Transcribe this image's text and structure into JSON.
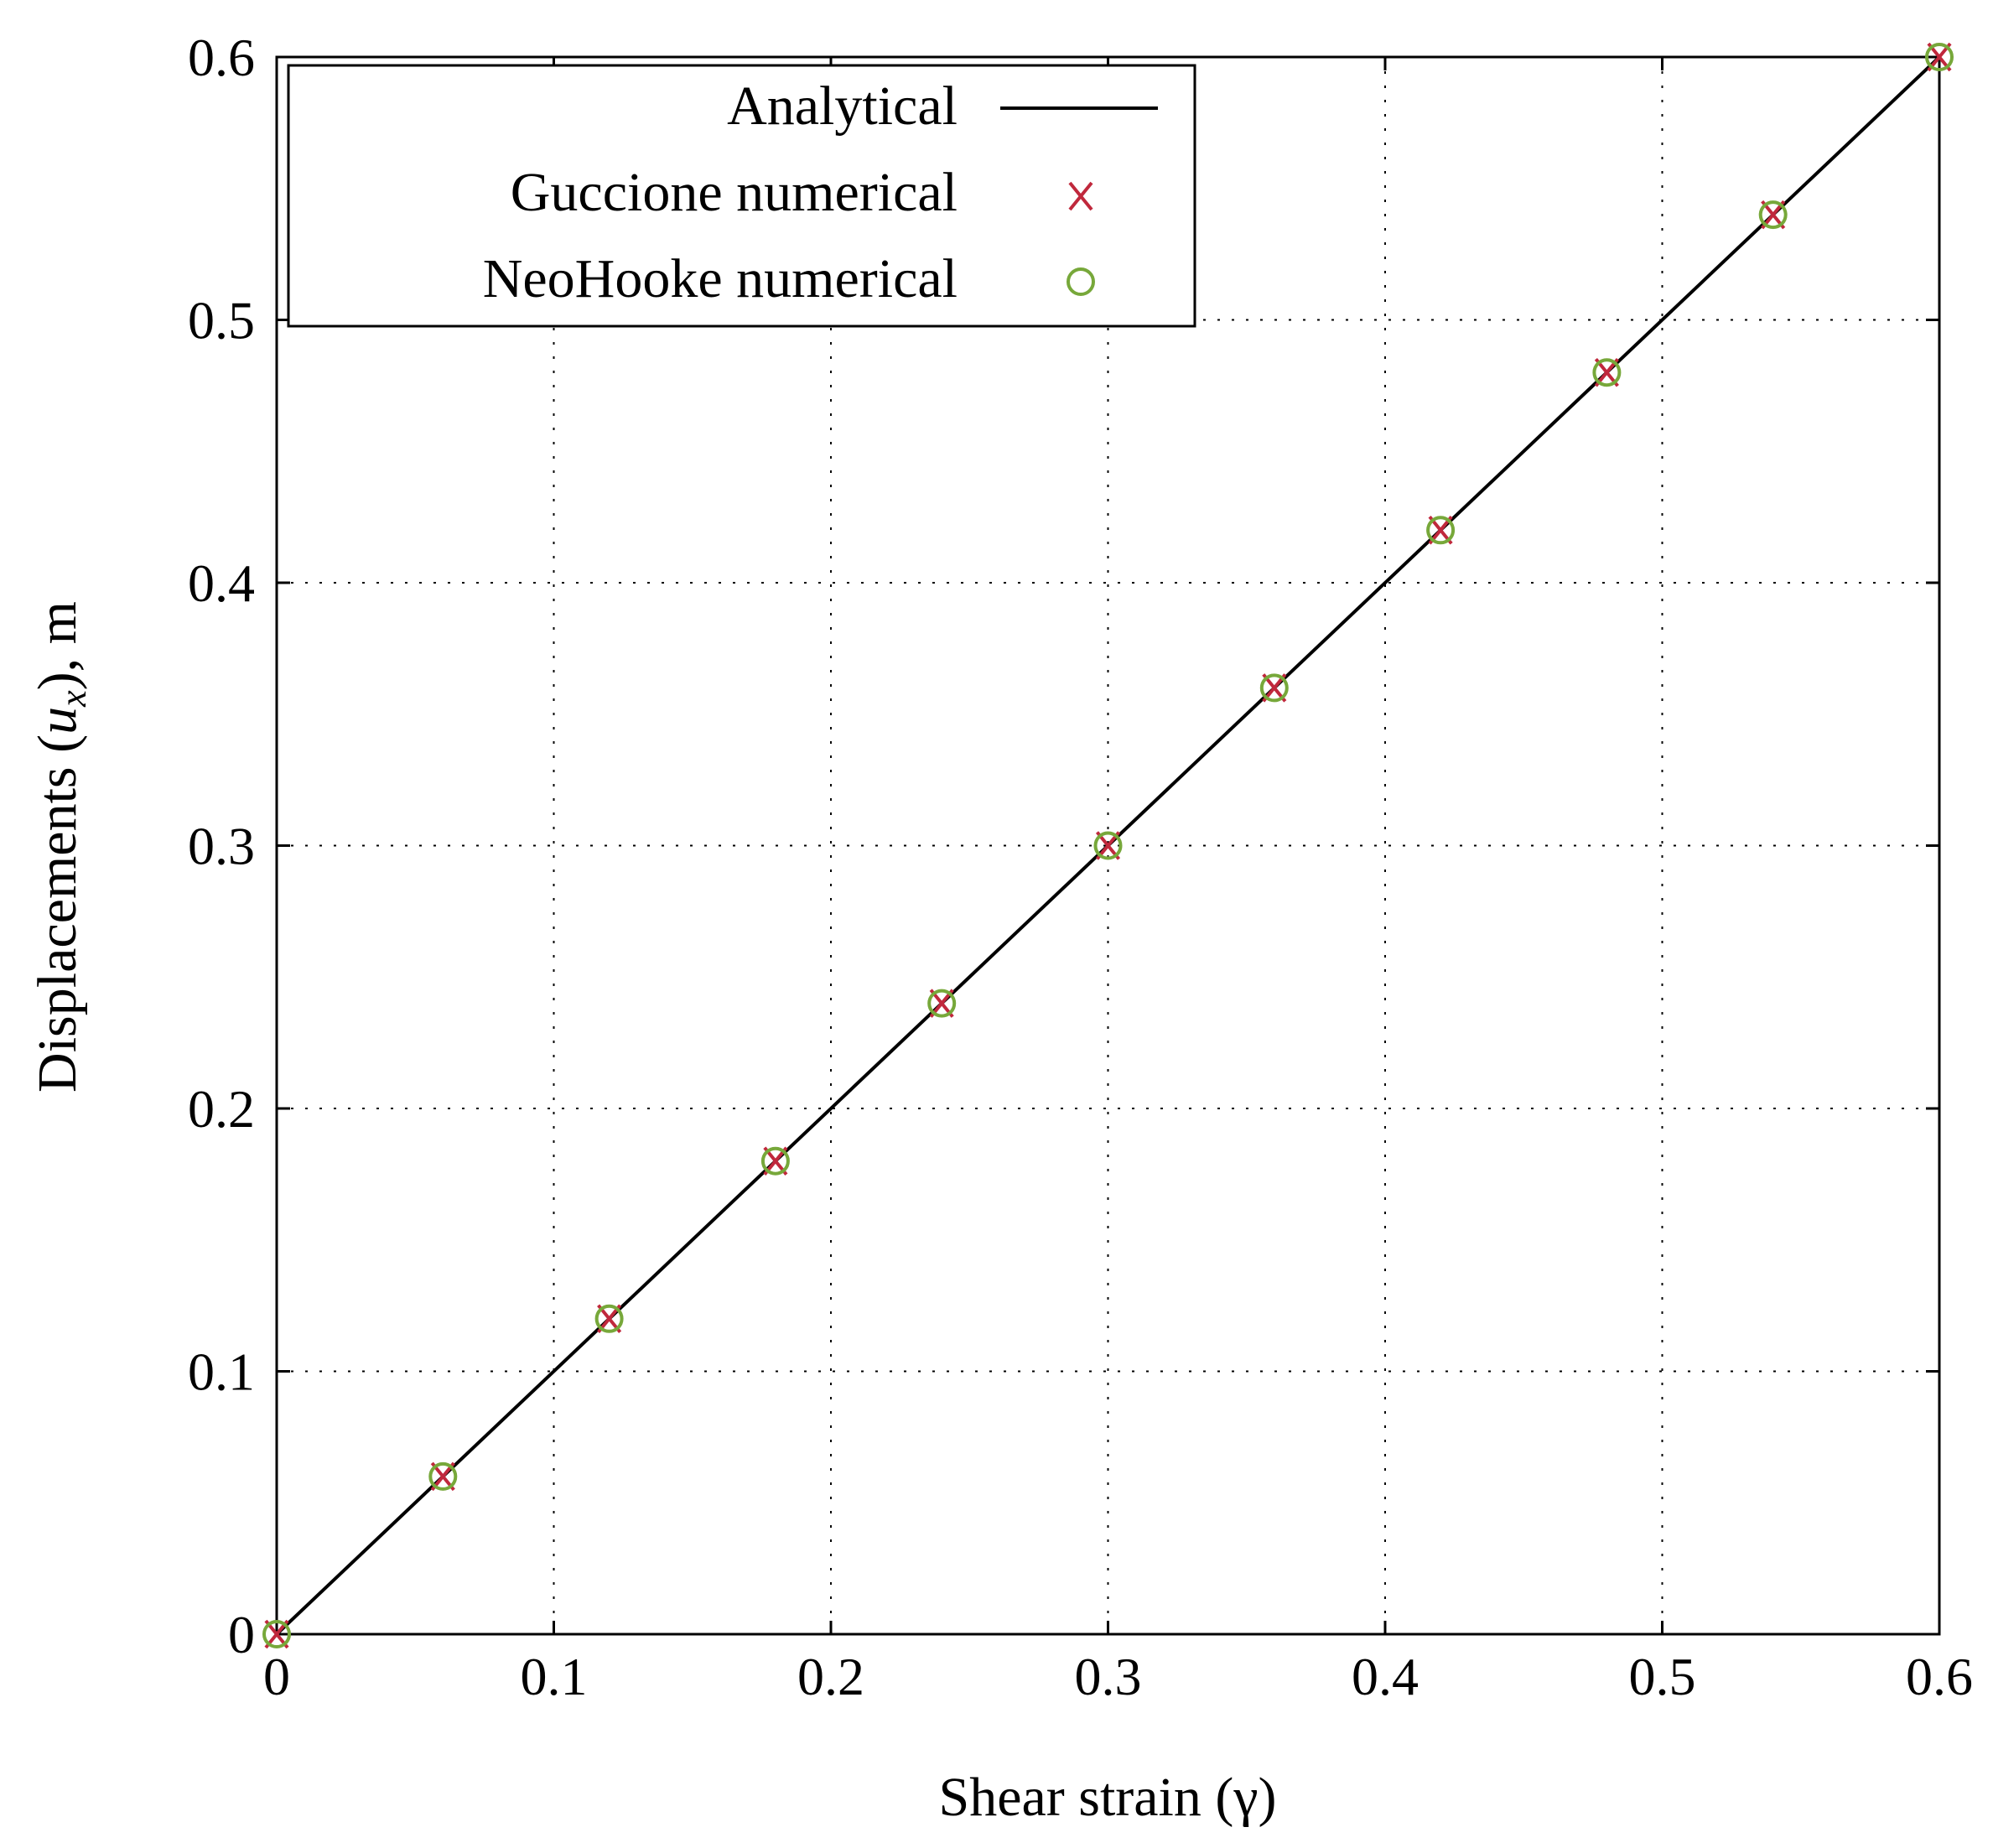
{
  "chart_data": {
    "type": "line",
    "title": "",
    "xlabel": "Shear strain (γ)",
    "ylabel_main": "Displacements (",
    "ylabel_var": "u",
    "ylabel_sub": "x",
    "ylabel_tail": "), m",
    "xlim": [
      0,
      0.6
    ],
    "ylim": [
      0,
      0.6
    ],
    "xticks": [
      "0",
      "0.1",
      "0.2",
      "0.3",
      "0.4",
      "0.5",
      "0.6"
    ],
    "yticks": [
      "0",
      "0.1",
      "0.2",
      "0.3",
      "0.4",
      "0.5",
      "0.6"
    ],
    "grid": true,
    "legend_position": "top-left",
    "series": [
      {
        "name": "Analytical",
        "style": "line",
        "color": "#000000",
        "x": [
          0,
          0.6
        ],
        "y": [
          0,
          0.6
        ]
      },
      {
        "name": "Guccione numerical",
        "style": "cross",
        "color": "#c0283c",
        "x": [
          0,
          0.06,
          0.12,
          0.18,
          0.24,
          0.3,
          0.36,
          0.42,
          0.48,
          0.54,
          0.6
        ],
        "y": [
          0,
          0.06,
          0.12,
          0.18,
          0.24,
          0.3,
          0.36,
          0.42,
          0.48,
          0.54,
          0.6
        ]
      },
      {
        "name": "NeoHooke numerical",
        "style": "circle",
        "color": "#77a83a",
        "x": [
          0,
          0.06,
          0.12,
          0.18,
          0.24,
          0.3,
          0.36,
          0.42,
          0.48,
          0.54,
          0.6
        ],
        "y": [
          0,
          0.06,
          0.12,
          0.18,
          0.24,
          0.3,
          0.36,
          0.42,
          0.48,
          0.54,
          0.6
        ]
      }
    ]
  }
}
